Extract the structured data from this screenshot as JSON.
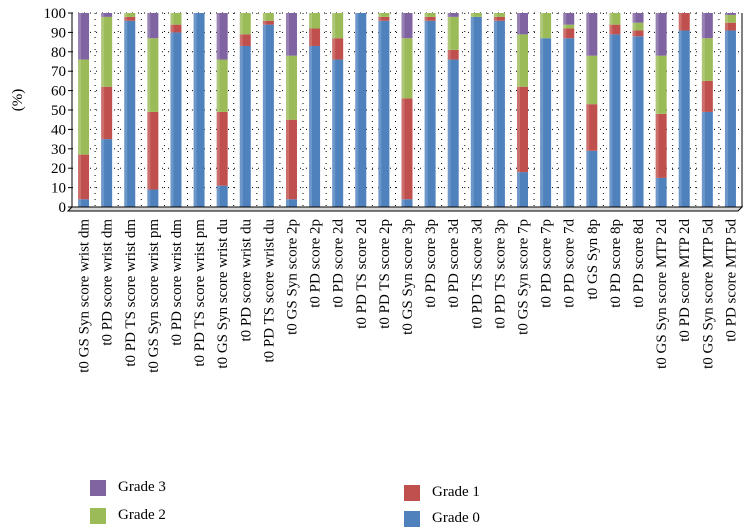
{
  "chart_data": {
    "type": "bar",
    "stacked": true,
    "ylabel": "(%)",
    "xlabel": "",
    "ylim": [
      0,
      100
    ],
    "yticks": [
      0,
      10,
      20,
      30,
      40,
      50,
      60,
      70,
      80,
      90,
      100
    ],
    "grid": "dotted",
    "legend_position": "bottom",
    "categories": [
      "t0 GS Syn score wrist dm",
      "t0 PD score wrist dm",
      "t0 PD TS score wrist dm",
      "t0 GS Syn score wrist pm",
      "t0 PD score wrist dm",
      "t0 PD TS score wrist pm",
      "t0 GS Syn score wrist du",
      "t0 PD score wrist du",
      "t0 PD TS score wrist du",
      "t0 GS Syn score 2p",
      "t0 PD score 2p",
      "t0 PD score 2d",
      "t0 PD TS score 2d",
      "t0 PD TS score 2p",
      "t0 GS Syn score 3p",
      "t0 PD score 3p",
      "t0 PD score 3d",
      "t0 PD TS score 3d",
      "t0 PD TS score 3p",
      "t0 GS Syn score 7p",
      "t0 PD score 7p",
      "t0 PD score 7d",
      "t0 GS Syn 8p",
      "t0 PD score 8p",
      "t0 PD score 8d",
      "t0 GS Syn score MTP 2d",
      "t0 PD score MTP 2d",
      "t0 GS Syn score MTP 5d",
      "t0 PD score MTP 5d"
    ],
    "series": [
      {
        "name": "Grade 0",
        "color": "#4f81bd",
        "values": [
          4,
          35,
          96,
          9,
          90,
          100,
          11,
          83,
          94,
          4,
          83,
          76,
          100,
          96,
          4,
          96,
          76,
          98,
          96,
          18,
          87,
          87,
          29,
          89,
          88,
          15,
          91,
          49,
          91
        ]
      },
      {
        "name": "Grade 1",
        "color": "#c0504d",
        "values": [
          23,
          27,
          2,
          40,
          4,
          0,
          38,
          6,
          2,
          41,
          9,
          11,
          0,
          2,
          52,
          2,
          5,
          0,
          2,
          44,
          0,
          5,
          24,
          5,
          3,
          33,
          9,
          16,
          4
        ]
      },
      {
        "name": "Grade 2",
        "color": "#9bbb59",
        "values": [
          49,
          36,
          2,
          38,
          6,
          0,
          27,
          11,
          4,
          33,
          8,
          13,
          0,
          2,
          31,
          2,
          17,
          2,
          2,
          27,
          13,
          2,
          25,
          6,
          4,
          30,
          0,
          22,
          4
        ]
      },
      {
        "name": "Grade 3",
        "color": "#8064a2",
        "values": [
          24,
          2,
          0,
          13,
          0,
          0,
          24,
          0,
          0,
          22,
          0,
          0,
          0,
          0,
          13,
          0,
          2,
          0,
          0,
          11,
          0,
          6,
          22,
          0,
          5,
          22,
          0,
          13,
          1
        ]
      }
    ]
  },
  "legend": [
    {
      "label": "Grade 3",
      "color": "#8064a2"
    },
    {
      "label": "Grade 2",
      "color": "#9bbb59"
    },
    {
      "label": "Grade 1",
      "color": "#c0504d"
    },
    {
      "label": "Grade 0",
      "color": "#4f81bd"
    }
  ]
}
